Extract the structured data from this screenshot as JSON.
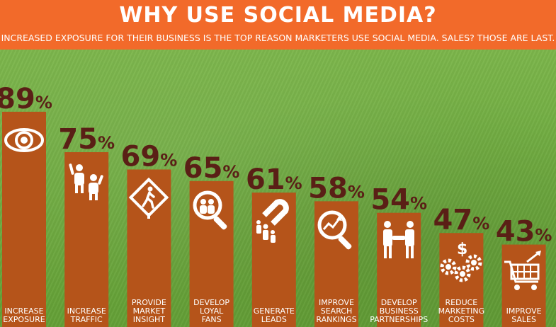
{
  "header": {
    "title": "WHY USE SOCIAL MEDIA?",
    "subtitle": "INCREASED EXPOSURE FOR THEIR BUSINESS IS THE TOP REASON MARKETERS USE SOCIAL MEDIA. SALES? THOSE ARE LAST."
  },
  "colors": {
    "header_bg": "#f26a2a",
    "bar": "#b5541a",
    "percent": "#5a1f16",
    "background": "#6fab40"
  },
  "chart_data": {
    "type": "bar",
    "categories": [
      "INCREASE EXPOSURE",
      "INCREASE TRAFFIC",
      "PROVIDE MARKET INSIGHT",
      "DEVELOP LOYAL FANS",
      "GENERATE LEADS",
      "IMPROVE SEARCH RANKINGS",
      "DEVELOP BUSINESS PARTNERSHIPS",
      "REDUCE MARKETING COSTS",
      "IMPROVE SALES"
    ],
    "label_lines": [
      [
        "INCREASE",
        "EXPOSURE"
      ],
      [
        "INCREASE",
        "TRAFFIC"
      ],
      [
        "PROVIDE",
        "MARKET",
        "INSIGHT"
      ],
      [
        "DEVELOP",
        "LOYAL",
        "FANS"
      ],
      [
        "GENERATE",
        "LEADS"
      ],
      [
        "IMPROVE",
        "SEARCH",
        "RANKINGS"
      ],
      [
        "DEVELOP",
        "BUSINESS",
        "PARTNERSHIPS"
      ],
      [
        "REDUCE",
        "MARKETING",
        "COSTS"
      ],
      [
        "IMPROVE",
        "SALES"
      ]
    ],
    "values": [
      89,
      75,
      69,
      65,
      61,
      58,
      54,
      47,
      43
    ],
    "value_suffix": "%",
    "icons": [
      "eye-icon",
      "people-waving-icon",
      "pedestrian-sign-icon",
      "magnify-people-icon",
      "magnet-people-icon",
      "search-growth-icon",
      "handshake-icon",
      "gears-dollar-icon",
      "shopping-cart-icon"
    ],
    "ylim": [
      0,
      100
    ]
  }
}
